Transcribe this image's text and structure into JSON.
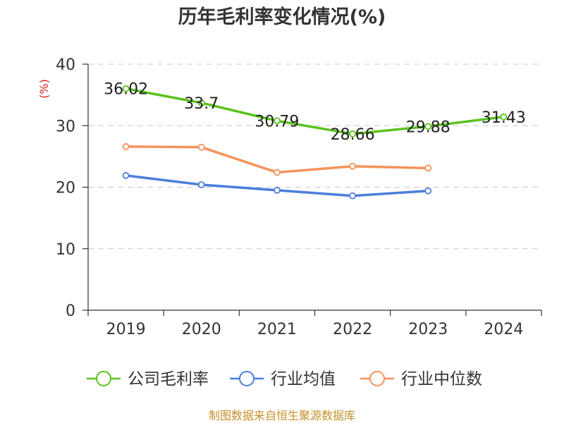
{
  "chart_data": {
    "type": "line",
    "title": "历年毛利率变化情况(%)",
    "ylabel": "(%)",
    "xlabel": "",
    "categories": [
      "2019",
      "2020",
      "2021",
      "2022",
      "2023",
      "2024"
    ],
    "ylim": [
      0,
      40
    ],
    "yticks": [
      0,
      10,
      20,
      30,
      40
    ],
    "grid": true,
    "legend_position": "bottom",
    "series": [
      {
        "name": "公司毛利率",
        "color": "#5ac21f",
        "values": [
          36.02,
          33.7,
          30.79,
          28.66,
          29.88,
          31.43
        ],
        "labels": [
          "36.02",
          "33.7",
          "30.79",
          "28.66",
          "29.88",
          "31.43"
        ]
      },
      {
        "name": "行业均值",
        "color": "#4d7fdc",
        "values": [
          21.9,
          20.4,
          19.5,
          18.6,
          19.4,
          null
        ]
      },
      {
        "name": "行业中位数",
        "color": "#f5925a",
        "values": [
          26.6,
          26.5,
          22.4,
          23.4,
          23.1,
          null
        ]
      }
    ]
  },
  "footer": {
    "source": "制图数据来自恒生聚源数据库"
  }
}
